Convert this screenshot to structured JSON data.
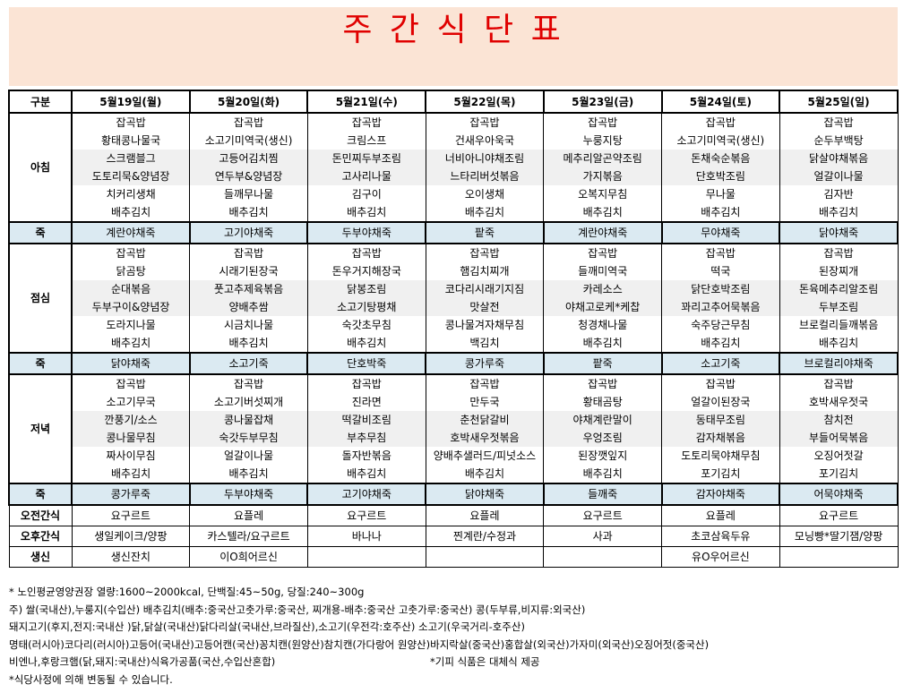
{
  "header": {
    "title": "주 간 식 단 표"
  },
  "table": {
    "columns": [
      "구분",
      "5월19일(월)",
      "5월20일(화)",
      "5월21일(수)",
      "5월22일(목)",
      "5월23일(금)",
      "5월24일(토)",
      "5월25일(일)"
    ],
    "sections": [
      {
        "label": "아침",
        "kind": "meal",
        "days": [
          [
            "잡곡밥",
            "황태콩나물국",
            "스크램블그",
            "도토리묵&양념장",
            "치커리생채",
            "배추김치"
          ],
          [
            "잡곡밥",
            "소고기미역국(생신)",
            "고등어김치찜",
            "연두부&양념장",
            "들깨무나물",
            "배추김치"
          ],
          [
            "잡곡밥",
            "크림스프",
            "돈민찌두부조림",
            "고사리나물",
            "김구이",
            "배추김치"
          ],
          [
            "잡곡밥",
            "건새우아욱국",
            "너비아니야채조림",
            "느타리버섯볶음",
            "오이생채",
            "배추김치"
          ],
          [
            "잡곡밥",
            "누룽지탕",
            "메추리알곤약조림",
            "가지볶음",
            "오복지무침",
            "배추김치"
          ],
          [
            "잡곡밥",
            "소고기미역국(생신)",
            "돈채숙순볶음",
            "단호박조림",
            "무나물",
            "배추김치"
          ],
          [
            "잡곡밥",
            "순두부백탕",
            "닭살야채볶음",
            "얼갈이나물",
            "김자반",
            "배추김치"
          ]
        ]
      },
      {
        "label": "죽",
        "kind": "porridge",
        "cells": [
          "계란야채죽",
          "고기야채죽",
          "두부야채죽",
          "팥죽",
          "계란야채죽",
          "무야채죽",
          "닭야채죽"
        ]
      },
      {
        "label": "점심",
        "kind": "meal",
        "days": [
          [
            "잡곡밥",
            "닭곰탕",
            "순대볶음",
            "두부구이&양념장",
            "도라지나물",
            "배추김치"
          ],
          [
            "잡곡밥",
            "시래기된장국",
            "풋고추제육볶음",
            "양배추쌈",
            "시금치나물",
            "배추김치"
          ],
          [
            "잡곡밥",
            "돈우거지해장국",
            "닭봉조림",
            "소고기탕평채",
            "숙갓초무침",
            "배추김치"
          ],
          [
            "잡곡밥",
            "햄김치찌개",
            "코다리시래기지짐",
            "맛살전",
            "콩나물겨자채무침",
            "백김치"
          ],
          [
            "잡곡밥",
            "들깨미역국",
            "카레소스",
            "야채고로케*케찹",
            "청경채나물",
            "배추김치"
          ],
          [
            "잡곡밥",
            "떡국",
            "닭단호박조림",
            "꽈리고추어묵볶음",
            "숙주당근무침",
            "배추김치"
          ],
          [
            "잡곡밥",
            "된장찌개",
            "돈육메추리알조림",
            "두부조림",
            "브로컬리들깨볶음",
            "배추김치"
          ]
        ]
      },
      {
        "label": "죽",
        "kind": "porridge",
        "cells": [
          "닭야채죽",
          "소고기죽",
          "단호박죽",
          "콩가루죽",
          "팥죽",
          "소고기죽",
          "브로컬리야채죽"
        ]
      },
      {
        "label": "저녁",
        "kind": "meal",
        "days": [
          [
            "잡곡밥",
            "소고기무국",
            "깐풍기/소스",
            "콩나물무침",
            "짜사이무침",
            "배추김치"
          ],
          [
            "잡곡밥",
            "소고기버섯찌개",
            "콩나물잡채",
            "숙갓두부무침",
            "얼갈이나물",
            "배추김치"
          ],
          [
            "잡곡밥",
            "진라면",
            "떡갈비조림",
            "부추무침",
            "돌자반볶음",
            "배추김치"
          ],
          [
            "잡곡밥",
            "만두국",
            "춘천닭갈비",
            "호박새우젓볶음",
            "양배추샐러드/피넛소스",
            "배추김치"
          ],
          [
            "잡곡밥",
            "황태곰탕",
            "야채계란말이",
            "우엉조림",
            "된장깻잎지",
            "배추김치"
          ],
          [
            "잡곡밥",
            "얼갈이된장국",
            "동태무조림",
            "감자채볶음",
            "도토리묵야채무침",
            "포기김치"
          ],
          [
            "잡곡밥",
            "호박새우젓국",
            "참치전",
            "부들어묵볶음",
            "오징어젓갈",
            "포기김치"
          ]
        ]
      },
      {
        "label": "죽",
        "kind": "porridge",
        "cells": [
          "콩가루죽",
          "두부야채죽",
          "고기야채죽",
          "닭야채죽",
          "들깨죽",
          "감자야채죽",
          "어묵야채죽"
        ]
      },
      {
        "label": "오전간식",
        "kind": "simple",
        "cells": [
          "요구르트",
          "요플레",
          "요구르트",
          "요플레",
          "요구르트",
          "요플레",
          "요구르트"
        ]
      },
      {
        "label": "오후간식",
        "kind": "simple",
        "cells": [
          "생일케이크/양팡",
          "카스텔라/요구르트",
          "바나나",
          "찐계란/수정과",
          "사과",
          "초코삼육두유",
          "모닝빵*딸기잼/양팡"
        ]
      },
      {
        "label": "생신",
        "kind": "simple",
        "cells": [
          "생신잔치",
          "이O희어르신",
          null,
          null,
          null,
          "유O우어르신",
          null
        ]
      }
    ]
  },
  "notes": [
    "* 노인평균영양권장 열량:1600~2000kcal, 단백질:45~50g, 당질:240~300g",
    "주) 쌀(국내산),누룽지(수입산) 배추김치(배추:중국산고춧가루:중국산, 찌개용-배추:중국산 고춧가루:중국산) 콩(두부류,비지류:외국산)",
    "돼지고기(후지,전지:국내산 )닭,닭살(국내산)닭다리살(국내산,브라질산),소고기(우전각:호주산) 소고기(우국거리-호주산)",
    "명태(러시아)코다리(러시아)고등어(국내산)고등어캔(국산)꽁치캔(원양산)참치캔(가다랑어 원양산)바지락살(중국산)홍합살(외국산)가자미(외국산)오징어젓(중국산)",
    "비엔나,후랑크햄(닭,돼지:국내산)식육가공품(국산,수입산혼합)",
    "*식당사정에 의해 변동될 수 있습니다."
  ],
  "note_aside": "*기피 식품은 대체식 제공"
}
